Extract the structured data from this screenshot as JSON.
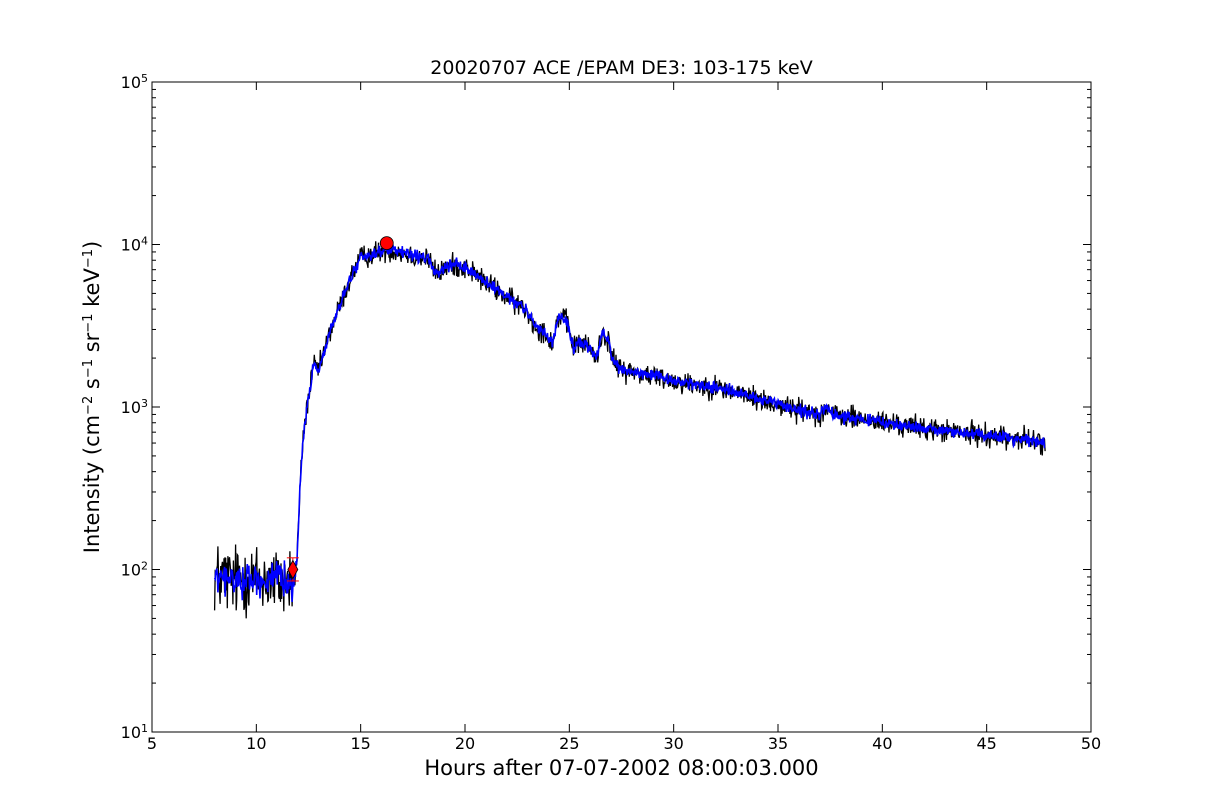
{
  "chart_data": {
    "type": "line",
    "title": "20020707 ACE /EPAM DE3: 103-175 keV",
    "xlabel": "Hours after 07-07-2002 08:00:03.000",
    "ylabel_parts": {
      "prefix": "Intensity (cm",
      "cm_exp": "−2",
      "s": " s",
      "s_exp": "−1",
      "sr": " sr",
      "sr_exp": "−1",
      "kev": " keV",
      "kev_exp": "−1",
      "suffix": ")"
    },
    "xlim": [
      5,
      50
    ],
    "ylim": [
      10,
      100000
    ],
    "yscale": "log",
    "grid": false,
    "x_ticks": [
      5,
      10,
      15,
      20,
      25,
      30,
      35,
      40,
      45,
      50
    ],
    "y_ticks": [
      {
        "value": 10,
        "base": "10",
        "exp": "1"
      },
      {
        "value": 100,
        "base": "10",
        "exp": "2"
      },
      {
        "value": 1000,
        "base": "10",
        "exp": "3"
      },
      {
        "value": 10000,
        "base": "10",
        "exp": "4"
      },
      {
        "value": 100000,
        "base": "10",
        "exp": "5"
      }
    ],
    "series": [
      {
        "style": "raw",
        "color": "#000000",
        "noise_pre": 0.16,
        "noise_post": 0.05,
        "points": [
          [
            8.0,
            90
          ],
          [
            8.5,
            88
          ],
          [
            9.0,
            85
          ],
          [
            9.5,
            90
          ],
          [
            10.0,
            86
          ],
          [
            10.5,
            88
          ],
          [
            11.0,
            84
          ],
          [
            11.5,
            85
          ],
          [
            11.8,
            85
          ],
          [
            11.95,
            110
          ],
          [
            12.1,
            350
          ],
          [
            12.25,
            650
          ],
          [
            12.4,
            950
          ],
          [
            12.55,
            1250
          ],
          [
            12.75,
            1800
          ],
          [
            13.0,
            1700
          ],
          [
            13.2,
            2100
          ],
          [
            13.5,
            2800
          ],
          [
            13.8,
            3600
          ],
          [
            14.1,
            4500
          ],
          [
            14.4,
            5700
          ],
          [
            14.7,
            7000
          ],
          [
            15.0,
            8300
          ],
          [
            15.3,
            8500
          ],
          [
            15.6,
            8800
          ],
          [
            16.0,
            9100
          ],
          [
            16.5,
            9200
          ],
          [
            17.0,
            8900
          ],
          [
            17.5,
            8500
          ],
          [
            18.0,
            8300
          ],
          [
            18.3,
            8000
          ],
          [
            18.5,
            6900
          ],
          [
            18.8,
            6600
          ],
          [
            19.0,
            7200
          ],
          [
            19.5,
            7500
          ],
          [
            20.0,
            7200
          ],
          [
            20.5,
            6600
          ],
          [
            21.0,
            5800
          ],
          [
            21.5,
            5300
          ],
          [
            22.0,
            4700
          ],
          [
            22.5,
            4300
          ],
          [
            23.0,
            3900
          ],
          [
            23.3,
            3200
          ],
          [
            23.8,
            2900
          ],
          [
            24.2,
            2500
          ],
          [
            24.5,
            3700
          ],
          [
            24.9,
            3300
          ],
          [
            25.2,
            2300
          ],
          [
            25.5,
            2500
          ],
          [
            26.0,
            2300
          ],
          [
            26.3,
            2000
          ],
          [
            26.6,
            2900
          ],
          [
            26.9,
            2500
          ],
          [
            27.1,
            1900
          ],
          [
            27.5,
            1700
          ],
          [
            28.0,
            1650
          ],
          [
            29.0,
            1550
          ],
          [
            30.0,
            1450
          ],
          [
            31.0,
            1380
          ],
          [
            32.0,
            1320
          ],
          [
            33.0,
            1230
          ],
          [
            34.0,
            1120
          ],
          [
            35.0,
            1030
          ],
          [
            36.0,
            960
          ],
          [
            37.0,
            910
          ],
          [
            37.4,
            1000
          ],
          [
            37.6,
            900
          ],
          [
            38.0,
            880
          ],
          [
            39.0,
            840
          ],
          [
            40.0,
            800
          ],
          [
            41.0,
            770
          ],
          [
            42.0,
            740
          ],
          [
            43.0,
            710
          ],
          [
            44.0,
            690
          ],
          [
            45.0,
            670
          ],
          [
            46.0,
            650
          ],
          [
            47.0,
            630
          ],
          [
            47.8,
            590
          ]
        ]
      },
      {
        "style": "smoothed",
        "color": "#0000ff",
        "noise_pre": 0.07,
        "noise_post": 0.025,
        "points": [
          [
            8.0,
            88
          ],
          [
            8.5,
            87
          ],
          [
            9.0,
            86
          ],
          [
            9.5,
            88
          ],
          [
            10.0,
            86
          ],
          [
            10.5,
            87
          ],
          [
            11.0,
            85
          ],
          [
            11.5,
            85
          ],
          [
            11.8,
            86
          ],
          [
            11.95,
            110
          ],
          [
            12.1,
            350
          ],
          [
            12.25,
            650
          ],
          [
            12.4,
            950
          ],
          [
            12.55,
            1250
          ],
          [
            12.75,
            1800
          ],
          [
            13.0,
            1700
          ],
          [
            13.2,
            2100
          ],
          [
            13.5,
            2800
          ],
          [
            13.8,
            3600
          ],
          [
            14.1,
            4500
          ],
          [
            14.4,
            5700
          ],
          [
            14.7,
            7000
          ],
          [
            15.0,
            8300
          ],
          [
            15.3,
            8500
          ],
          [
            15.6,
            8800
          ],
          [
            16.0,
            9100
          ],
          [
            16.5,
            9200
          ],
          [
            17.0,
            8900
          ],
          [
            17.5,
            8500
          ],
          [
            18.0,
            8300
          ],
          [
            18.3,
            8000
          ],
          [
            18.5,
            6900
          ],
          [
            18.8,
            6600
          ],
          [
            19.0,
            7200
          ],
          [
            19.5,
            7500
          ],
          [
            20.0,
            7200
          ],
          [
            20.5,
            6600
          ],
          [
            21.0,
            5800
          ],
          [
            21.5,
            5300
          ],
          [
            22.0,
            4700
          ],
          [
            22.5,
            4300
          ],
          [
            23.0,
            3900
          ],
          [
            23.3,
            3200
          ],
          [
            23.8,
            2900
          ],
          [
            24.2,
            2500
          ],
          [
            24.5,
            3700
          ],
          [
            24.9,
            3300
          ],
          [
            25.2,
            2300
          ],
          [
            25.5,
            2500
          ],
          [
            26.0,
            2300
          ],
          [
            26.3,
            2000
          ],
          [
            26.6,
            2900
          ],
          [
            26.9,
            2500
          ],
          [
            27.1,
            1900
          ],
          [
            27.5,
            1700
          ],
          [
            28.0,
            1650
          ],
          [
            29.0,
            1550
          ],
          [
            30.0,
            1450
          ],
          [
            31.0,
            1380
          ],
          [
            32.0,
            1320
          ],
          [
            33.0,
            1230
          ],
          [
            34.0,
            1120
          ],
          [
            35.0,
            1030
          ],
          [
            36.0,
            960
          ],
          [
            37.0,
            910
          ],
          [
            37.4,
            1000
          ],
          [
            37.6,
            900
          ],
          [
            38.0,
            880
          ],
          [
            39.0,
            840
          ],
          [
            40.0,
            800
          ],
          [
            41.0,
            770
          ],
          [
            42.0,
            740
          ],
          [
            43.0,
            710
          ],
          [
            44.0,
            690
          ],
          [
            45.0,
            670
          ],
          [
            46.0,
            650
          ],
          [
            47.0,
            630
          ],
          [
            47.8,
            590
          ]
        ]
      }
    ],
    "markers": [
      {
        "type": "diamond",
        "x": 11.75,
        "y": 100,
        "color": "#ff0000",
        "yerr": [
          85,
          118
        ]
      },
      {
        "type": "circle",
        "x": 16.25,
        "y": 10200,
        "color": "#ff0000"
      }
    ]
  }
}
